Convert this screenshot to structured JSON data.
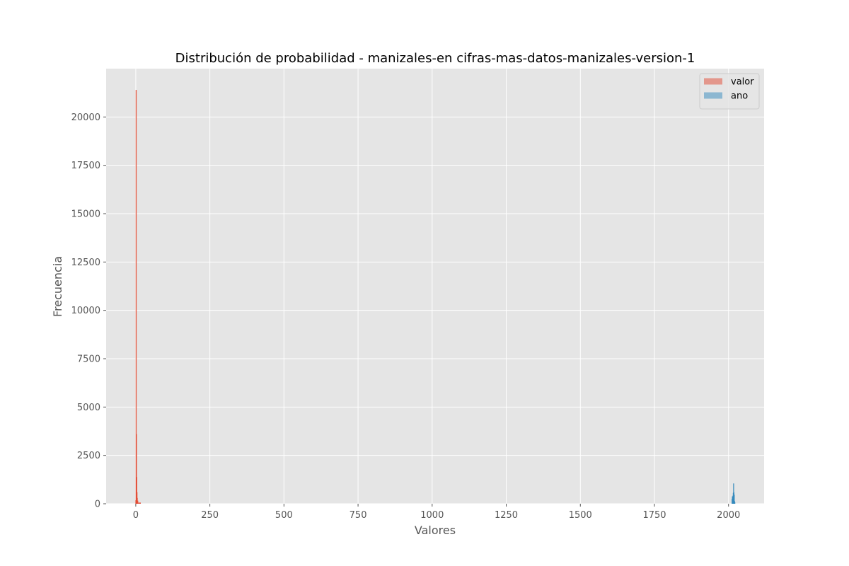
{
  "chart_data": {
    "type": "histogram",
    "title": "Distribución de probabilidad - manizales-en cifras-mas-datos-manizales-version-1",
    "xlabel": "Valores",
    "ylabel": "Frecuencia",
    "xlim": [
      -100,
      2120
    ],
    "ylim": [
      0,
      22500
    ],
    "xticks": [
      0,
      250,
      500,
      750,
      1000,
      1250,
      1500,
      1750,
      2000
    ],
    "yticks": [
      0,
      2500,
      5000,
      7500,
      10000,
      12500,
      15000,
      17500,
      20000
    ],
    "grid": true,
    "legend_position": "top-right",
    "series": [
      {
        "name": "valor",
        "color": "#E24A33",
        "bins": [
          {
            "x0": -1.2,
            "x1": -0.3,
            "count": 180
          },
          {
            "x0": -0.3,
            "x1": 0.6,
            "count": 21400
          },
          {
            "x0": 0.6,
            "x1": 1.5,
            "count": 3600
          },
          {
            "x0": 1.5,
            "x1": 2.4,
            "count": 1380
          },
          {
            "x0": 2.4,
            "x1": 3.3,
            "count": 600
          },
          {
            "x0": 3.3,
            "x1": 5.0,
            "count": 300
          },
          {
            "x0": 5.0,
            "x1": 8.0,
            "count": 160
          },
          {
            "x0": 8.0,
            "x1": 17.0,
            "count": 60
          }
        ]
      },
      {
        "name": "ano",
        "color": "#348ABD",
        "bins": [
          {
            "x0": 2010.5,
            "x1": 2011.5,
            "count": 250
          },
          {
            "x0": 2011.5,
            "x1": 2012.5,
            "count": 380
          },
          {
            "x0": 2012.5,
            "x1": 2013.5,
            "count": 330
          },
          {
            "x0": 2013.5,
            "x1": 2014.5,
            "count": 420
          },
          {
            "x0": 2014.5,
            "x1": 2015.5,
            "count": 560
          },
          {
            "x0": 2015.5,
            "x1": 2016.5,
            "count": 1050
          },
          {
            "x0": 2016.5,
            "x1": 2017.5,
            "count": 600
          },
          {
            "x0": 2017.5,
            "x1": 2018.5,
            "count": 470
          },
          {
            "x0": 2018.5,
            "x1": 2019.5,
            "count": 140
          },
          {
            "x0": 2019.5,
            "x1": 2020.5,
            "count": 80
          }
        ]
      }
    ]
  }
}
